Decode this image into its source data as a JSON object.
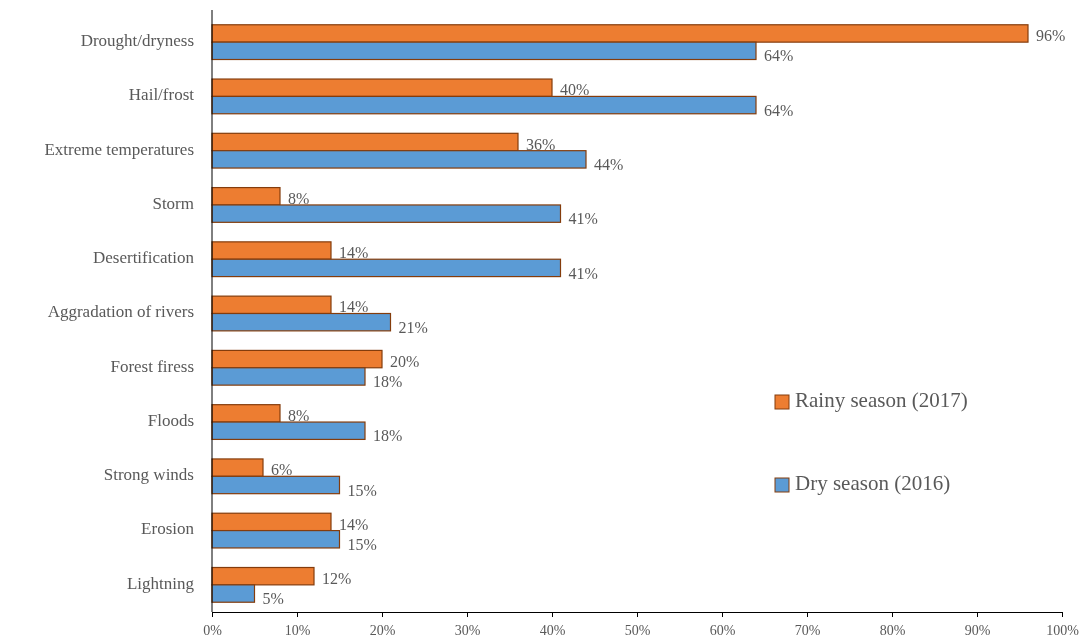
{
  "chart_data": {
    "type": "bar",
    "orientation": "horizontal",
    "categories": [
      "Drought/dryness",
      "Hail/frost",
      "Extreme temperatures",
      "Storm",
      "Desertification",
      "Aggradation of rivers",
      "Forest firess",
      "Floods",
      "Strong winds",
      "Erosion",
      "Lightning"
    ],
    "series": [
      {
        "name": "Rainy season (2017)",
        "color": "#ed7d31",
        "values": [
          96,
          40,
          36,
          8,
          14,
          14,
          20,
          8,
          6,
          14,
          12
        ],
        "value_labels": [
          "96%",
          "40%",
          "36%",
          "8%",
          "14%",
          "14%",
          "20%",
          "8%",
          "6%",
          "14%",
          "12%"
        ]
      },
      {
        "name": "Dry season (2016)",
        "color": "#5b9bd5",
        "values": [
          64,
          64,
          44,
          41,
          41,
          21,
          18,
          18,
          15,
          15,
          5
        ],
        "value_labels": [
          "64%",
          "64%",
          "44%",
          "41%",
          "41%",
          "21%",
          "18%",
          "18%",
          "15%",
          "15%",
          "5%"
        ]
      }
    ],
    "xlim": [
      0,
      100
    ],
    "xticks": [
      {
        "value": 0,
        "label": "0%"
      },
      {
        "value": 10,
        "label": "10%"
      },
      {
        "value": 20,
        "label": "20%"
      },
      {
        "value": 30,
        "label": "30%"
      },
      {
        "value": 40,
        "label": "40%"
      },
      {
        "value": 50,
        "label": "50%"
      },
      {
        "value": 60,
        "label": "60%"
      },
      {
        "value": 70,
        "label": "70%"
      },
      {
        "value": 80,
        "label": "80%"
      },
      {
        "value": 90,
        "label": "90%"
      },
      {
        "value": 100,
        "label": "100%"
      }
    ],
    "legend": "right"
  }
}
